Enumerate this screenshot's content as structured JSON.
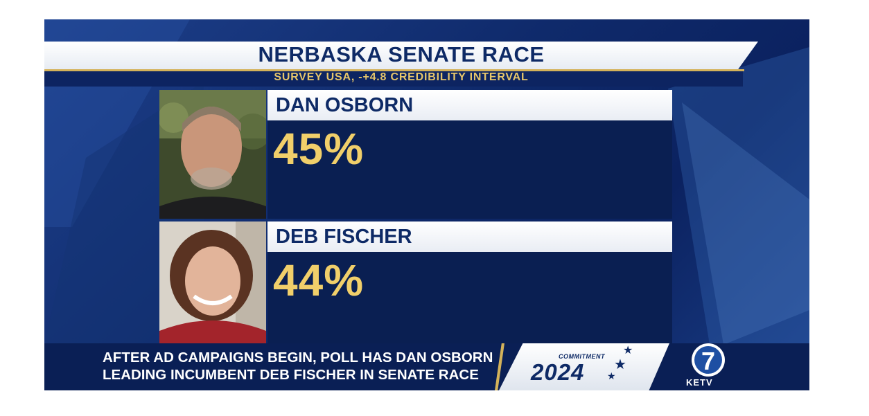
{
  "graphic": {
    "title": "NERBASKA SENATE RACE",
    "subtitle": "SURVEY USA, -+4.8 CREDIBILITY INTERVAL"
  },
  "candidates": [
    {
      "name": "DAN OSBORN",
      "percent": "45%"
    },
    {
      "name": "DEB FISCHER",
      "percent": "44%"
    }
  ],
  "ticker": {
    "headline": "AFTER AD CAMPAIGNS BEGIN, POLL HAS DAN OSBORN\nLEADING INCUMBENT DEB FISCHER IN SENATE RACE"
  },
  "branding": {
    "commitment_label": "COMMITMENT",
    "year": "2024",
    "station_number": "7",
    "station": "KETV"
  },
  "colors": {
    "navy": "#0e2a66",
    "panel": "#0a1f52",
    "gold": "#f1cf6a",
    "accent_gold": "#d4b25a"
  },
  "icons": [
    "portrait-photo",
    "star-icon",
    "ketv-7-logo"
  ]
}
